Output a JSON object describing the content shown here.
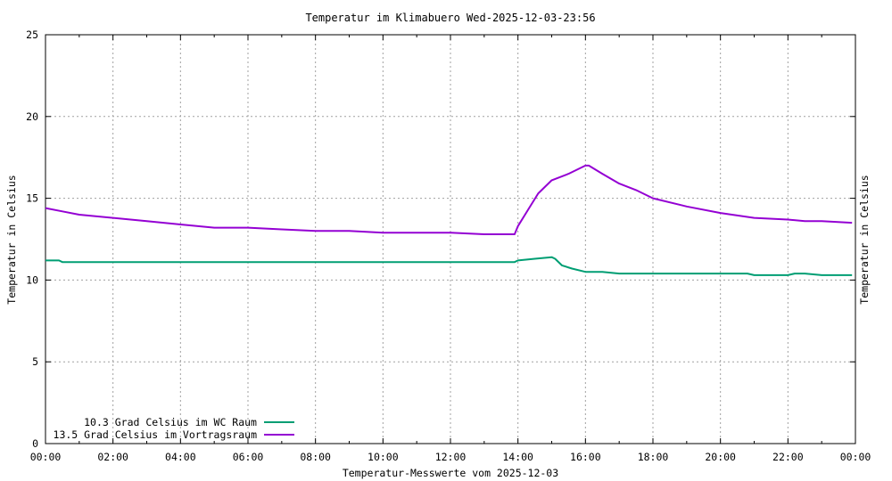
{
  "chart_data": {
    "type": "line",
    "title": "Temperatur im Klimabuero Wed-2025-12-03-23:56",
    "xlabel": "Temperatur-Messwerte vom 2025-12-03",
    "ylabel": "Temperatur in Celsius",
    "y2label": "Temperatur in Celsius",
    "xlim": [
      0,
      24
    ],
    "ylim": [
      0,
      25
    ],
    "x_tick_labels": [
      "00:00",
      "02:00",
      "04:00",
      "06:00",
      "08:00",
      "10:00",
      "12:00",
      "14:00",
      "16:00",
      "18:00",
      "20:00",
      "22:00",
      "00:00"
    ],
    "y_ticks": [
      0,
      5,
      10,
      15,
      20,
      25
    ],
    "grid": true,
    "legend_position": "bottom-left",
    "series": [
      {
        "name": "10.3 Grad Celsius im WC Raum",
        "color": "#009e73",
        "x": [
          0,
          0.4,
          0.5,
          2,
          4,
          6,
          8,
          10,
          12,
          13.9,
          14.0,
          14.5,
          15.0,
          15.1,
          15.3,
          15.6,
          16.0,
          16.5,
          17.0,
          18.0,
          19.0,
          20.0,
          20.8,
          21.0,
          22.0,
          22.2,
          22.5,
          23.0,
          23.9
        ],
        "values": [
          11.2,
          11.2,
          11.1,
          11.1,
          11.1,
          11.1,
          11.1,
          11.1,
          11.1,
          11.1,
          11.2,
          11.3,
          11.4,
          11.3,
          10.9,
          10.7,
          10.5,
          10.5,
          10.4,
          10.4,
          10.4,
          10.4,
          10.4,
          10.3,
          10.3,
          10.4,
          10.4,
          10.3,
          10.3
        ]
      },
      {
        "name": "13.5 Grad Celsius im Vortragsraum",
        "color": "#9400d3",
        "x": [
          0,
          0.5,
          1,
          2,
          3,
          4,
          5,
          6,
          7,
          8,
          9,
          10,
          11,
          12,
          13,
          13.9,
          14.0,
          14.3,
          14.6,
          15.0,
          15.5,
          16.0,
          16.1,
          16.5,
          17.0,
          17.5,
          18.0,
          19.0,
          20.0,
          21.0,
          22.0,
          22.5,
          23.0,
          23.9
        ],
        "values": [
          14.4,
          14.2,
          14.0,
          13.8,
          13.6,
          13.4,
          13.2,
          13.2,
          13.1,
          13.0,
          13.0,
          12.9,
          12.9,
          12.9,
          12.8,
          12.8,
          13.3,
          14.3,
          15.3,
          16.1,
          16.5,
          17.0,
          17.0,
          16.5,
          15.9,
          15.5,
          15.0,
          14.5,
          14.1,
          13.8,
          13.7,
          13.6,
          13.6,
          13.5
        ]
      }
    ]
  }
}
